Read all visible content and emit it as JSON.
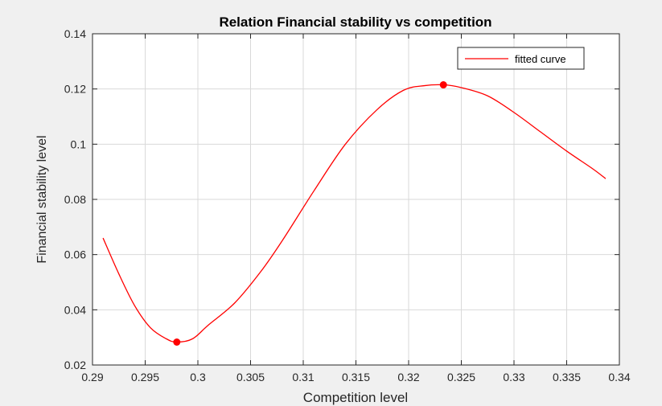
{
  "colors": {
    "figure_bg": "#f0f0f0",
    "axes_bg": "#ffffff",
    "curve": "#ff0000",
    "grid": "#d9d9d9",
    "axis": "#262626"
  },
  "chart_data": {
    "type": "line",
    "title": "Relation Financial stability vs competition",
    "xlabel": "Competition level",
    "ylabel": "Financial stability level",
    "xlim": [
      0.29,
      0.34
    ],
    "ylim": [
      0.02,
      0.14
    ],
    "xticks": [
      0.29,
      0.295,
      0.3,
      0.305,
      0.31,
      0.315,
      0.32,
      0.325,
      0.33,
      0.335,
      0.34
    ],
    "xtick_labels": [
      "0.29",
      "0.295",
      "0.3",
      "0.305",
      "0.31",
      "0.315",
      "0.32",
      "0.325",
      "0.33",
      "0.335",
      "0.34"
    ],
    "yticks": [
      0.02,
      0.04,
      0.06,
      0.08,
      0.1,
      0.12,
      0.14
    ],
    "ytick_labels": [
      "0.02",
      "0.04",
      "0.06",
      "0.08",
      "0.1",
      "0.12",
      "0.14"
    ],
    "grid": true,
    "legend_position": "top-right",
    "series": [
      {
        "name": "fitted curve",
        "color": "#ff0000",
        "x": [
          0.291,
          0.2925,
          0.294,
          0.2955,
          0.297,
          0.298,
          0.2995,
          0.301,
          0.3035,
          0.306,
          0.308,
          0.311,
          0.314,
          0.317,
          0.3195,
          0.3215,
          0.3233,
          0.325,
          0.3275,
          0.33,
          0.3325,
          0.335,
          0.3375,
          0.3387
        ],
        "y": [
          0.066,
          0.053,
          0.0415,
          0.0335,
          0.0295,
          0.0283,
          0.0295,
          0.0345,
          0.0425,
          0.054,
          0.065,
          0.083,
          0.1,
          0.1125,
          0.1195,
          0.1212,
          0.1215,
          0.1205,
          0.1175,
          0.1115,
          0.1045,
          0.0975,
          0.091,
          0.0875
        ]
      }
    ],
    "markers": [
      {
        "x": 0.298,
        "y": 0.0283
      },
      {
        "x": 0.3233,
        "y": 0.1215
      }
    ]
  }
}
